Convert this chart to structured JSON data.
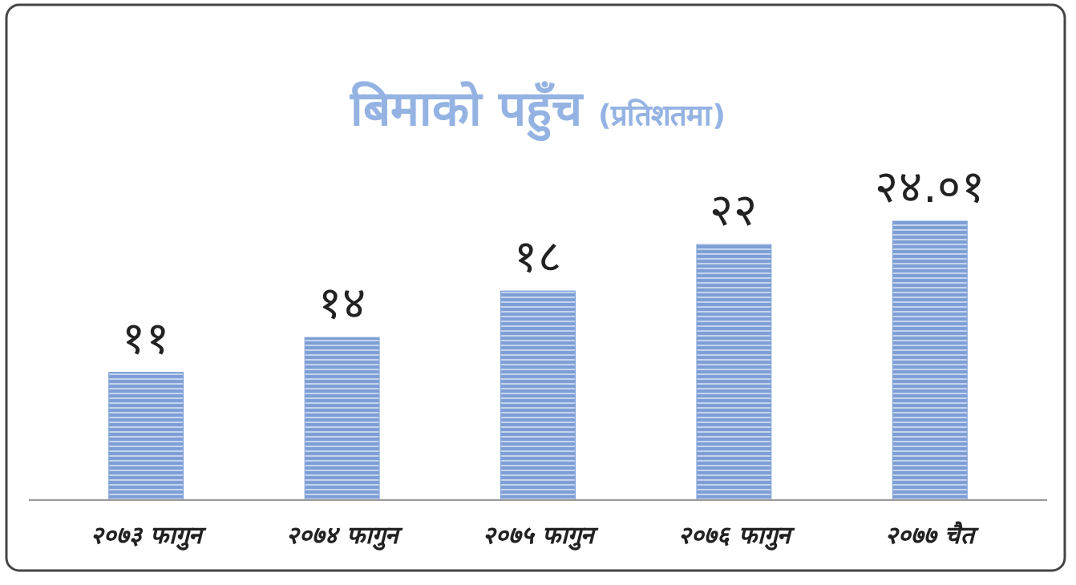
{
  "chart_data": {
    "type": "bar",
    "title": "बिमाको पहुँच",
    "subtitle": "(प्रतिशतमा)",
    "categories": [
      "२०७३ फागुन",
      "२०७४ फागुन",
      "२०७५ फागुन",
      "२०७६ फागुन",
      "२०७७ चैत"
    ],
    "values": [
      11,
      14,
      18,
      22,
      24.01
    ],
    "value_labels": [
      "११",
      "१४",
      "१८",
      "२२",
      "२४.०१"
    ],
    "color": "#7e9fd6"
  }
}
